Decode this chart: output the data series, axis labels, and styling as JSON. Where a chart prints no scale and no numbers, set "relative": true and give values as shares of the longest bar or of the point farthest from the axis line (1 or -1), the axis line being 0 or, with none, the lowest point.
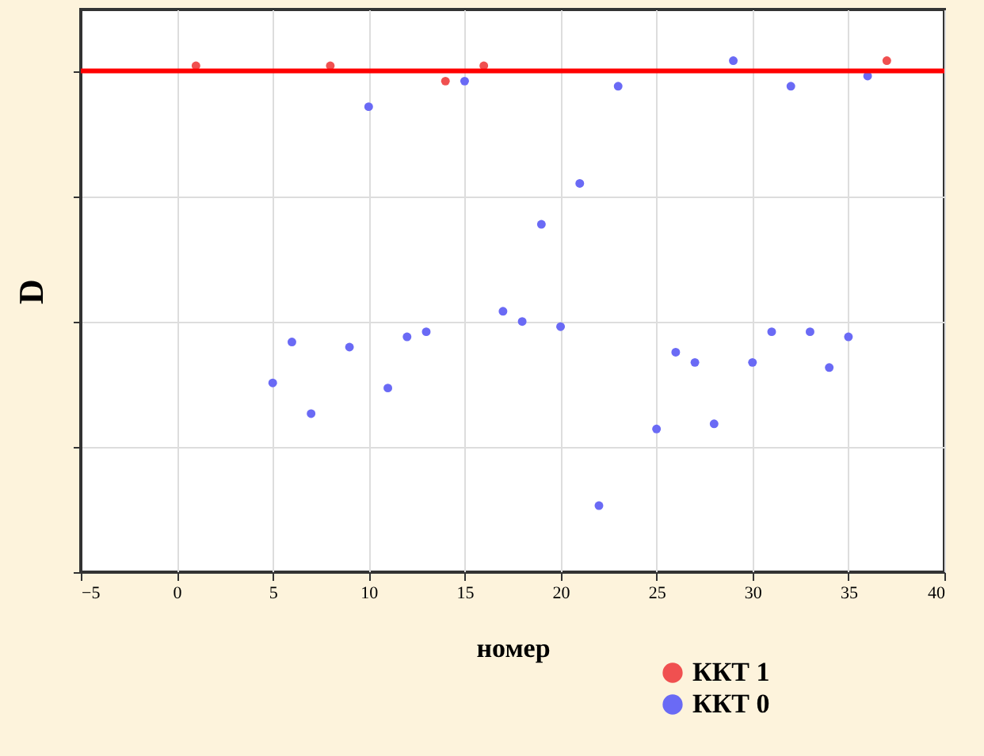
{
  "chart_data": {
    "type": "scatter",
    "relative": true,
    "xlabel": "номер",
    "ylabel": "D",
    "xlim": [
      -5,
      40
    ],
    "xticks": [
      -5,
      0,
      5,
      10,
      15,
      20,
      25,
      30,
      35,
      40
    ],
    "grid": true,
    "legend": "bottom right",
    "marker": "circle",
    "ref_lines": [
      {
        "axis": "y",
        "value": 0.98,
        "color": "#ff0000"
      }
    ],
    "series": [
      {
        "name": "ККТ 1",
        "color": "#f05050",
        "x": [
          1,
          8,
          14,
          16,
          37
        ],
        "values": [
          0.99,
          0.99,
          0.96,
          0.99,
          1.0
        ]
      },
      {
        "name": "ККТ 0",
        "color": "#6a6af5",
        "x": [
          5,
          6,
          7,
          9,
          10,
          11,
          12,
          13,
          15,
          17,
          18,
          19,
          20,
          21,
          22,
          23,
          25,
          26,
          27,
          28,
          29,
          30,
          31,
          32,
          33,
          34,
          35,
          36
        ],
        "values": [
          0.37,
          0.45,
          0.31,
          0.44,
          0.91,
          0.36,
          0.46,
          0.47,
          0.96,
          0.51,
          0.49,
          0.68,
          0.48,
          0.76,
          0.13,
          0.95,
          0.28,
          0.43,
          0.41,
          0.29,
          1.0,
          0.41,
          0.47,
          0.95,
          0.47,
          0.4,
          0.46,
          0.97
        ]
      }
    ]
  }
}
